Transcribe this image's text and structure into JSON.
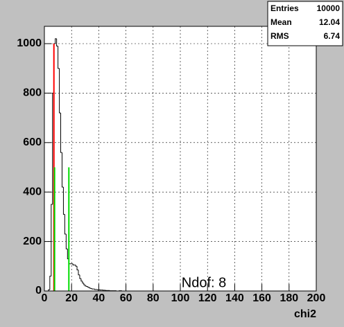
{
  "chart_data": {
    "type": "histogram",
    "xlabel": "chi2",
    "annotation": "Ndof: 8",
    "bins": [
      0,
      1,
      2,
      3,
      4,
      5,
      6,
      7,
      8,
      9,
      10,
      11,
      12,
      13,
      14,
      15,
      16,
      17,
      18,
      19,
      20,
      21,
      22,
      23,
      24,
      25,
      26,
      27,
      28,
      29,
      30,
      31,
      32,
      33,
      34,
      35,
      36,
      37,
      38,
      39,
      40,
      41,
      42,
      43,
      44,
      45,
      46,
      47,
      48,
      49,
      50,
      51,
      52,
      53,
      54,
      55,
      56,
      57,
      58,
      59,
      60
    ],
    "values": [
      0,
      0,
      0,
      5,
      60,
      350,
      800,
      1000,
      1020,
      990,
      900,
      720,
      560,
      420,
      310,
      230,
      170,
      130,
      110,
      110,
      110,
      105,
      105,
      100,
      85,
      65,
      50,
      40,
      32,
      25,
      20,
      18,
      15,
      12,
      10,
      8,
      8,
      6,
      6,
      5,
      5,
      4,
      4,
      3,
      3,
      2,
      2,
      2,
      1,
      1,
      1,
      1,
      1,
      0,
      0,
      1,
      1,
      0,
      0,
      0
    ],
    "color": "#000000",
    "markers": [
      {
        "x": 7,
        "y": 1000,
        "color": "#ff0000"
      },
      {
        "x": 7.5,
        "y": 500,
        "color": "#00dd00"
      },
      {
        "x": 18,
        "y": 500,
        "color": "#00dd00"
      }
    ],
    "xlim": [
      0,
      200
    ],
    "xticks": [
      0,
      20,
      40,
      60,
      80,
      100,
      120,
      140,
      160,
      180,
      200
    ],
    "ylim": [
      0,
      1070
    ],
    "yticks": [
      0,
      200,
      400,
      600,
      800,
      1000
    ],
    "grid": true
  },
  "stats": {
    "rows": [
      {
        "label": "Entries",
        "value": 10000
      },
      {
        "label": "Mean",
        "value": 12.04
      },
      {
        "label": "RMS",
        "value": 6.74
      }
    ]
  }
}
